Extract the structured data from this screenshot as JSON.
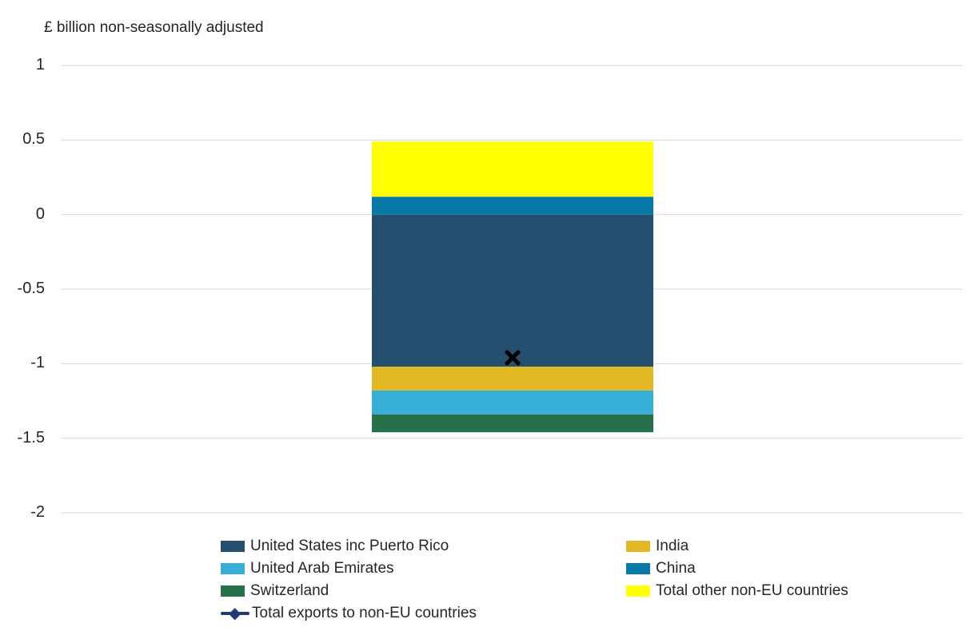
{
  "chart_data": {
    "type": "bar",
    "stacked": true,
    "ylabel": "£ billion non-seasonally adjusted",
    "ylim": [
      -2,
      1
    ],
    "yticks": [
      "1",
      "0.5",
      "0",
      "-0.5",
      "-1",
      "-1.5",
      "-2"
    ],
    "grid": true,
    "legend_position": "bottom",
    "series": [
      {
        "name": "United States inc Puerto Rico",
        "value": -1.02,
        "color": "#244f6e"
      },
      {
        "name": "India",
        "value": -0.16,
        "color": "#e1b925"
      },
      {
        "name": "United Arab Emirates",
        "value": -0.16,
        "color": "#37aed8"
      },
      {
        "name": "Switzerland",
        "value": -0.12,
        "color": "#26714a"
      },
      {
        "name": "China",
        "value": 0.12,
        "color": "#0678a8"
      },
      {
        "name": "Total other non-EU countries",
        "value": 0.37,
        "color": "#ffff00"
      }
    ],
    "total": {
      "name": "Total exports to non-EU countries",
      "value": -0.96,
      "marker": "x",
      "color": "#000000"
    }
  }
}
